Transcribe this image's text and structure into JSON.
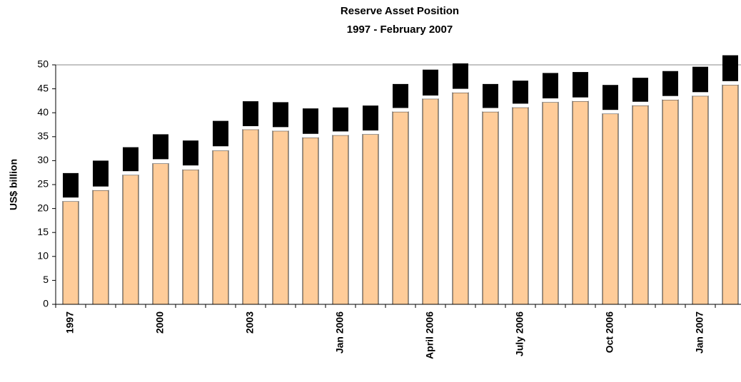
{
  "chart_data": {
    "type": "stacked_bar",
    "title": "Reserve Asset Position",
    "subtitle": "1997 -  February 2007",
    "y_label": "US$ billion",
    "categories": [
      "1997",
      null,
      null,
      "2000",
      null,
      null,
      "2003",
      null,
      null,
      "Jan 2006",
      null,
      null,
      "April 2006",
      null,
      null,
      "July 2006",
      null,
      null,
      "Oct 2006",
      null,
      null,
      "Jan 2007",
      null
    ],
    "series": [
      {
        "color": "#ffcc99",
        "values": [
          21.5,
          23.8,
          27.0,
          29.4,
          28.1,
          32.1,
          36.5,
          36.2,
          34.8,
          35.3,
          35.5,
          40.2,
          42.9,
          44.2,
          40.2,
          41.1,
          42.2,
          42.4,
          39.8,
          41.5,
          42.7,
          43.5,
          45.8
        ]
      },
      {
        "color": "#ffffff",
        "values": [
          0.8,
          0.8,
          0.8,
          0.9,
          0.9,
          0.9,
          0.7,
          0.8,
          0.8,
          0.8,
          0.8,
          0.8,
          0.7,
          0.8,
          0.8,
          0.8,
          0.8,
          0.8,
          0.8,
          0.8,
          0.8,
          0.8,
          0.8
        ]
      },
      {
        "color": "#000000",
        "values": [
          5.1,
          5.4,
          5.0,
          5.2,
          5.2,
          5.3,
          5.2,
          5.2,
          5.3,
          5.0,
          5.2,
          5.0,
          5.4,
          5.3,
          5.0,
          4.8,
          5.3,
          5.3,
          5.2,
          5.0,
          5.2,
          5.3,
          5.4
        ]
      }
    ],
    "ylim": [
      0,
      50
    ],
    "yticks": [
      0,
      5,
      10,
      15,
      20,
      25,
      30,
      35,
      40,
      45,
      50
    ],
    "grid": false
  }
}
